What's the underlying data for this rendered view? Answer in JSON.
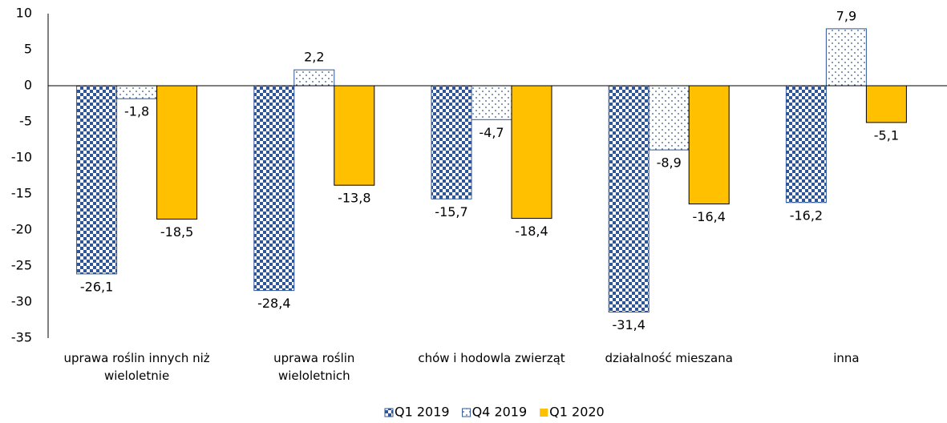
{
  "chart_data": {
    "type": "bar",
    "categories": [
      "uprawa roślin innych niż wieloletnie",
      "uprawa roślin wieloletnich",
      "chów i hodowla zwierząt",
      "działalność mieszana",
      "inna"
    ],
    "series": [
      {
        "name": "Q1 2019",
        "color": "#2e5597",
        "pattern": "checker",
        "values": [
          -26.1,
          -28.4,
          -15.7,
          -31.4,
          -16.2
        ],
        "value_labels": [
          "-26,1",
          "-28,4",
          "-15,7",
          "-31,4",
          "-16,2"
        ]
      },
      {
        "name": "Q4 2019",
        "color": "#2e5597",
        "pattern": "dots",
        "values": [
          -1.8,
          2.2,
          -4.7,
          -8.9,
          7.9
        ],
        "value_labels": [
          "-1,8",
          "2,2",
          "-4,7",
          "-8,9",
          "7,9"
        ]
      },
      {
        "name": "Q1 2020",
        "color": "#ffc000",
        "pattern": "solid",
        "values": [
          -18.5,
          -13.8,
          -18.4,
          -16.4,
          -5.1
        ],
        "value_labels": [
          "-18,5",
          "-13,8",
          "-18,4",
          "-16,4",
          "-5,1"
        ]
      }
    ],
    "ylim": [
      -35,
      10
    ],
    "yticks": [
      -35,
      -30,
      -25,
      -20,
      -15,
      -10,
      -5,
      0,
      5,
      10
    ],
    "grid": false,
    "legend": "bottom"
  }
}
